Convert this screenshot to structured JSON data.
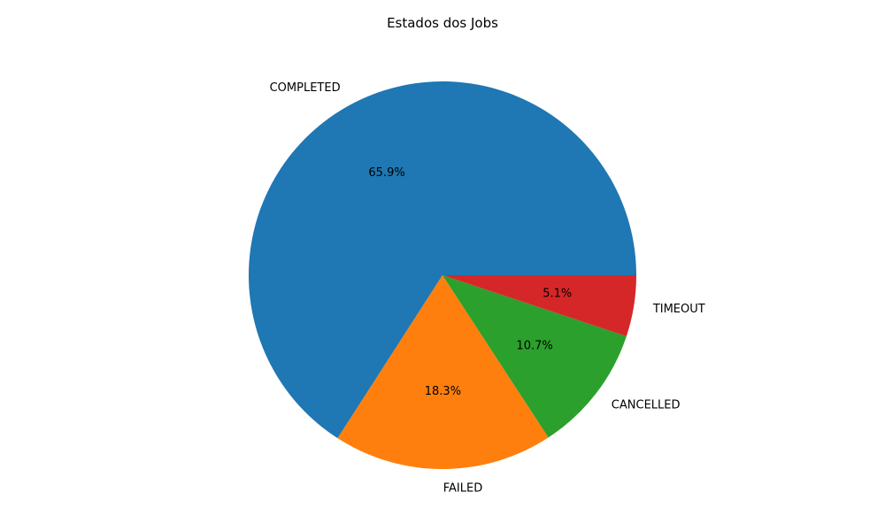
{
  "chart_data": {
    "type": "pie",
    "title": "Estados dos Jobs",
    "categories": [
      "COMPLETED",
      "FAILED",
      "CANCELLED",
      "TIMEOUT"
    ],
    "values": [
      65.9,
      18.3,
      10.7,
      5.1
    ],
    "value_labels": [
      "65.9%",
      "18.3%",
      "10.7%",
      "5.1%"
    ],
    "colors": [
      "#1f77b4",
      "#ff7f0e",
      "#2ca02c",
      "#d62728"
    ],
    "start_angle_deg": 0,
    "direction": "counterclockwise",
    "legend": "none"
  }
}
